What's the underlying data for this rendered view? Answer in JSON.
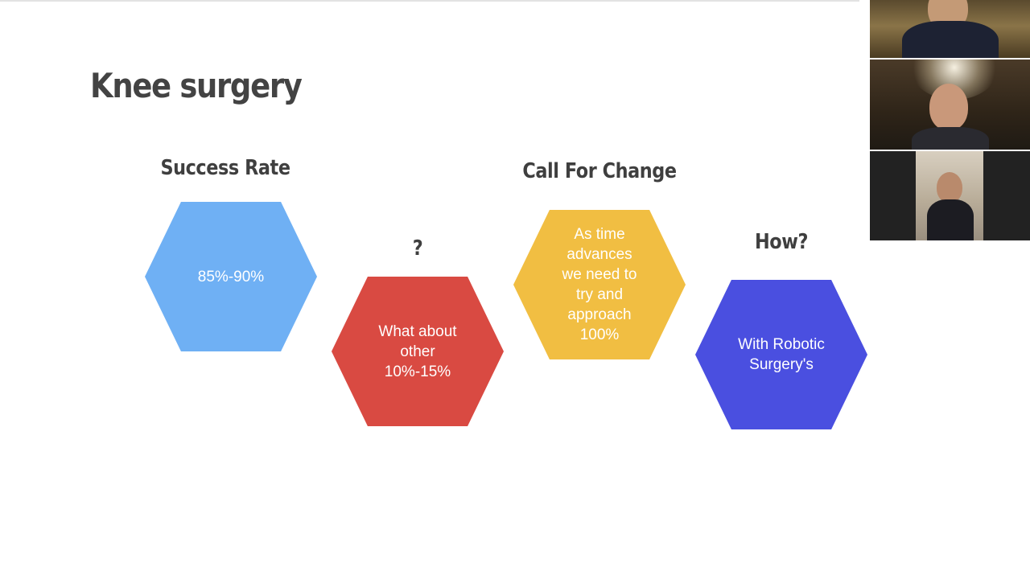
{
  "slide": {
    "title": "Knee surgery",
    "headings": {
      "success_rate": "Success Rate",
      "question": "?",
      "call_for_change": "Call For Change",
      "how": "How?"
    },
    "hexagons": [
      {
        "text": "85%-90%",
        "color": "#6fb0f4"
      },
      {
        "text": "What about\nother\n10%-15%",
        "color": "#d94a42"
      },
      {
        "text": "As time\nadvances\nwe need to\ntry and\napproach\n100%",
        "color": "#f1be42"
      },
      {
        "text": "With Robotic\nSurgery's",
        "color": "#4a4fe0"
      }
    ]
  },
  "video_gallery": {
    "participant_count_visible": 3
  }
}
